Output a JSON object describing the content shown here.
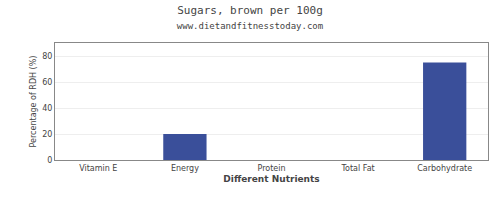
{
  "chart_data": {
    "type": "bar",
    "title": "Sugars, brown per 100g",
    "subtitle": "www.dietandfitnesstoday.com",
    "categories": [
      "Vitamin E",
      "Energy",
      "Protein",
      "Total Fat",
      "Carbohydrate"
    ],
    "values": [
      0,
      20,
      0,
      0,
      75
    ],
    "color": "#3a4f9a",
    "xlabel": "Different Nutrients",
    "ylabel": "Percentage of RDH (%)",
    "ylim": [
      0,
      90
    ],
    "yticks": [
      0,
      20,
      40,
      60,
      80
    ],
    "grid": true
  }
}
